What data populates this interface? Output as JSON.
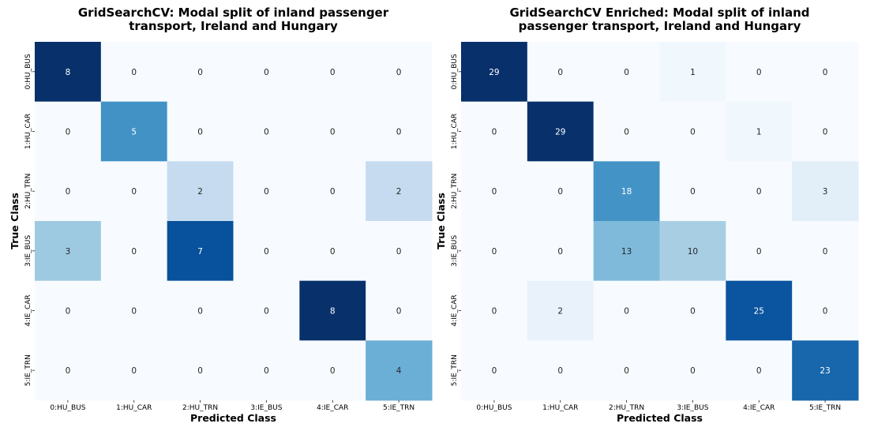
{
  "chart_data": [
    {
      "type": "heatmap",
      "title_lines": [
        "GridSearchCV: Modal split of inland passenger",
        "transport, Ireland and Hungary"
      ],
      "xlabel": "Predicted Class",
      "ylabel": "True Class",
      "x_categories": [
        "0:HU_BUS",
        "1:HU_CAR",
        "2:HU_TRN",
        "3:IE_BUS",
        "4:IE_CAR",
        "5:IE_TRN"
      ],
      "y_categories": [
        "0:HU_BUS",
        "1:HU_CAR",
        "2:HU_TRN",
        "3:IE_BUS",
        "4:IE_CAR",
        "5:IE_TRN"
      ],
      "matrix": [
        [
          8,
          0,
          0,
          0,
          0,
          0
        ],
        [
          0,
          5,
          0,
          0,
          0,
          0
        ],
        [
          0,
          0,
          2,
          0,
          0,
          2
        ],
        [
          3,
          0,
          7,
          0,
          0,
          0
        ],
        [
          0,
          0,
          0,
          0,
          8,
          0
        ],
        [
          0,
          0,
          0,
          0,
          0,
          4
        ]
      ],
      "colormap": "Blues",
      "vmin": 0,
      "vmax": 8
    },
    {
      "type": "heatmap",
      "title_lines": [
        "GridSearchCV Enriched: Modal split of inland",
        "passenger transport, Ireland and Hungary"
      ],
      "xlabel": "Predicted Class",
      "ylabel": "True Class",
      "x_categories": [
        "0:HU_BUS",
        "1:HU_CAR",
        "2:HU_TRN",
        "3:IE_BUS",
        "4:IE_CAR",
        "5:IE_TRN"
      ],
      "y_categories": [
        "0:HU_BUS",
        "1:HU_CAR",
        "2:HU_TRN",
        "3:IE_BUS",
        "4:IE_CAR",
        "5:IE_TRN"
      ],
      "matrix": [
        [
          29,
          0,
          0,
          1,
          0,
          0
        ],
        [
          0,
          29,
          0,
          0,
          1,
          0
        ],
        [
          0,
          0,
          18,
          0,
          0,
          3
        ],
        [
          0,
          0,
          13,
          10,
          0,
          0
        ],
        [
          0,
          2,
          0,
          0,
          25,
          0
        ],
        [
          0,
          0,
          0,
          0,
          0,
          23
        ]
      ],
      "colormap": "Blues",
      "vmin": 0,
      "vmax": 29
    }
  ]
}
